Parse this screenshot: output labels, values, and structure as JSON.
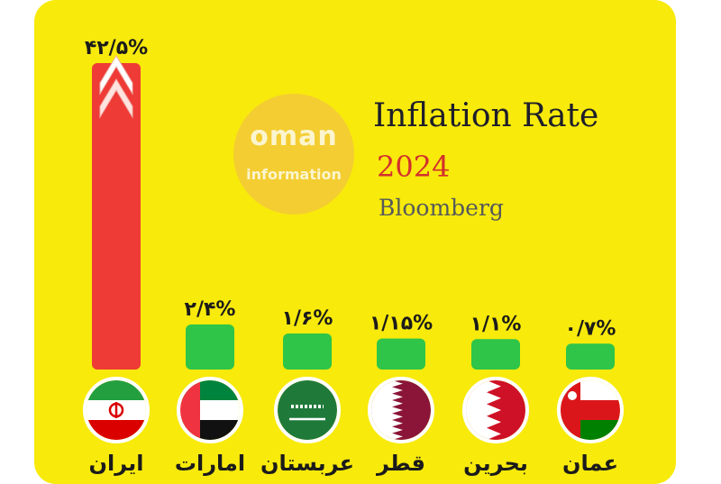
{
  "brand": {
    "line1": "oman",
    "line2": "information"
  },
  "header": {
    "title": "Inflation Rate",
    "year": "2024",
    "source": "Bloomberg"
  },
  "colors": {
    "background": "#f8ea0b",
    "iran_bar": "#ef3b36",
    "other_bars": "#2ec549",
    "year_text": "#d3302c"
  },
  "chart_data": {
    "type": "bar",
    "title": "Inflation Rate 2024",
    "categories": [
      "ایران",
      "امارات",
      "عربستان",
      "قطر",
      "بحرین",
      "عمان"
    ],
    "values": [
      42.5,
      2.4,
      1.6,
      1.15,
      1.1,
      0.7
    ],
    "value_labels": [
      "۴۲/۵%",
      "۲/۴%",
      "۱/۶%",
      "۱/۱۵%",
      "۱/۱%",
      "۰/۷%"
    ],
    "bar_colors": [
      "#ef3b36",
      "#2ec549",
      "#2ec549",
      "#2ec549",
      "#2ec549",
      "#2ec549"
    ],
    "flag_icons": [
      "iran-flag-icon",
      "uae-flag-icon",
      "saudi-flag-icon",
      "qatar-flag-icon",
      "bahrain-flag-icon",
      "oman-flag-icon"
    ],
    "xlabel": "",
    "ylabel": "",
    "ylim": [
      0,
      42.5
    ]
  }
}
